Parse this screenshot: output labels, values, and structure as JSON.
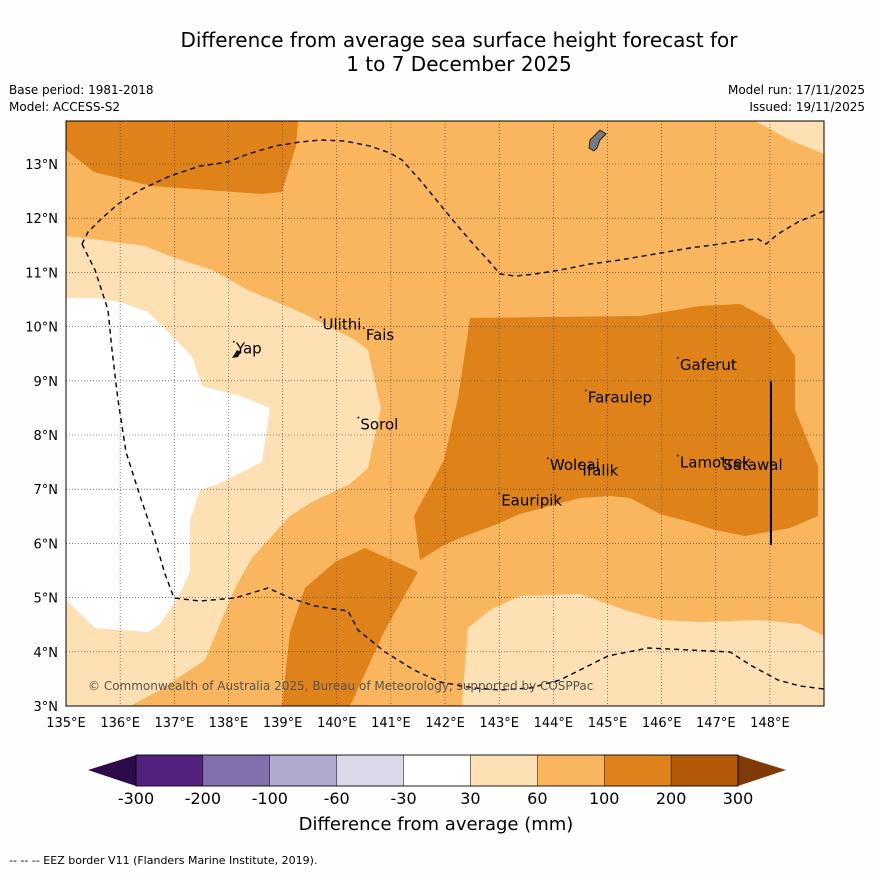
{
  "title": {
    "line1": "Difference from average sea surface height forecast for",
    "line2": "1 to 7 December 2025"
  },
  "meta": {
    "base_period": "Base period: 1981-2018",
    "model": "Model: ACCESS-S2",
    "model_run": "Model run: 17/11/2025",
    "issued": "Issued: 19/11/2025"
  },
  "map": {
    "lon_range": [
      135,
      149
    ],
    "lat_range": [
      3,
      13.8
    ],
    "x_ticks": [
      "135°E",
      "136°E",
      "137°E",
      "138°E",
      "139°E",
      "140°E",
      "141°E",
      "142°E",
      "143°E",
      "144°E",
      "145°E",
      "146°E",
      "147°E",
      "148°E"
    ],
    "y_ticks": [
      "3°N",
      "4°N",
      "5°N",
      "6°N",
      "7°N",
      "8°N",
      "9°N",
      "10°N",
      "11°N",
      "12°N",
      "13°N"
    ],
    "copyright": "© Commonwealth of Australia 2025, Bureau of Meteorology, supported by COSPPac",
    "places": [
      {
        "name": "Yap",
        "lon": 138.1,
        "lat": 9.5
      },
      {
        "name": "Ulithi",
        "lon": 139.7,
        "lat": 9.95
      },
      {
        "name": "Fais",
        "lon": 140.5,
        "lat": 9.75
      },
      {
        "name": "Sorol",
        "lon": 140.4,
        "lat": 8.1
      },
      {
        "name": "Gaferut",
        "lon": 146.3,
        "lat": 9.2
      },
      {
        "name": "Faraulep",
        "lon": 144.6,
        "lat": 8.6
      },
      {
        "name": "Woleai",
        "lon": 143.9,
        "lat": 7.35
      },
      {
        "name": "Ifalik",
        "lon": 144.5,
        "lat": 7.25
      },
      {
        "name": "Lamotrek",
        "lon": 146.3,
        "lat": 7.4
      },
      {
        "name": "Satawal",
        "lon": 147.1,
        "lat": 7.35
      },
      {
        "name": "Eauripik",
        "lon": 143.0,
        "lat": 6.7
      }
    ]
  },
  "colorbar": {
    "label": "Difference from average (mm)",
    "ticks": [
      "-300",
      "-200",
      "-100",
      "-60",
      "-30",
      "30",
      "60",
      "100",
      "200",
      "300"
    ],
    "colors": [
      "#55217f",
      "#8170ac",
      "#b2a9d1",
      "#d9d9ea",
      "#ffffff",
      "#fde0b4",
      "#f9b65e",
      "#e0821a",
      "#b35807"
    ],
    "extend_low": "#2d0a4a",
    "extend_high": "#7f3a08"
  },
  "footer": "--  --  -- EEZ border V11 (Flanders Marine Institute, 2019)."
}
